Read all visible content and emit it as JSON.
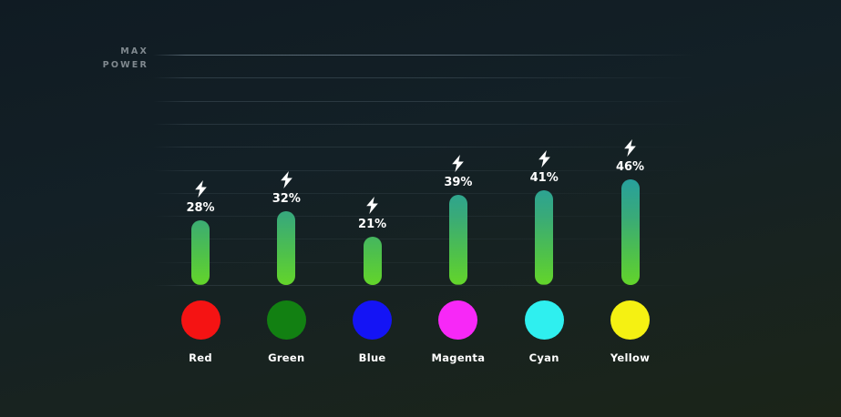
{
  "axis": {
    "max_label_line1": "MAX",
    "max_label_line2": "POWER"
  },
  "icons": {
    "bolt": "lightning-bolt-icon"
  },
  "colors": {
    "background_top": "#101b23",
    "background_bottom": "#1b2418",
    "bar_gradient_top": "#27a09e",
    "bar_gradient_bottom": "#63d52a",
    "gridline": "#9fb4c4",
    "axis_label_text": "#80898f",
    "value_text": "#ffffff"
  },
  "chart_data": {
    "type": "bar",
    "title": "",
    "ylabel": "MAX POWER",
    "ylim": [
      0,
      100
    ],
    "grid": true,
    "categories": [
      "Red",
      "Green",
      "Blue",
      "Magenta",
      "Cyan",
      "Yellow"
    ],
    "values": [
      28,
      32,
      21,
      39,
      41,
      46
    ],
    "value_labels": [
      "28%",
      "32%",
      "21%",
      "39%",
      "41%",
      "46%"
    ],
    "unit": "%",
    "swatch_colors": [
      "#f51313",
      "#128012",
      "#1414f5",
      "#f728f7",
      "#2fefef",
      "#f5f112"
    ],
    "annotations": "white lightning bolt icon above each value label",
    "legend_position": "none"
  }
}
